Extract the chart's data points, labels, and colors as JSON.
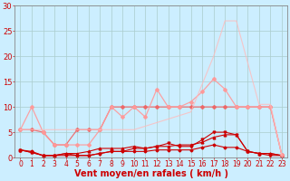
{
  "background_color": "#cceeff",
  "grid_color": "#aacccc",
  "xlabel": "Vent moyen/en rafales ( km/h )",
  "xlabel_color": "#cc0000",
  "xlabel_fontsize": 7,
  "tick_color": "#cc0000",
  "tick_fontsize": 6,
  "xlim": [
    -0.5,
    23.5
  ],
  "ylim": [
    0,
    30
  ],
  "yticks": [
    0,
    5,
    10,
    15,
    20,
    25,
    30
  ],
  "xticks": [
    0,
    1,
    2,
    3,
    4,
    5,
    6,
    7,
    8,
    9,
    10,
    11,
    12,
    13,
    14,
    15,
    16,
    17,
    18,
    19,
    20,
    21,
    22,
    23
  ],
  "series": [
    {
      "x": [
        0,
        1,
        2,
        3,
        4,
        5,
        6,
        7,
        8,
        9,
        10,
        11,
        12,
        13,
        14,
        15,
        16,
        17,
        18,
        19,
        20,
        21,
        22,
        23
      ],
      "y": [
        1.5,
        1.2,
        0.4,
        0.4,
        0.8,
        0.4,
        0.4,
        0.8,
        1.2,
        1.2,
        1.2,
        1.2,
        1.5,
        1.5,
        1.5,
        1.5,
        2.0,
        2.5,
        2.0,
        2.0,
        1.2,
        0.8,
        0.8,
        0.4
      ],
      "color": "#cc0000",
      "linewidth": 0.8,
      "marker": "D",
      "markersize": 1.5,
      "alpha": 1.0
    },
    {
      "x": [
        0,
        1,
        2,
        3,
        4,
        5,
        6,
        7,
        8,
        9,
        10,
        11,
        12,
        13,
        14,
        15,
        16,
        17,
        18,
        19,
        20,
        21,
        22,
        23
      ],
      "y": [
        1.5,
        1.0,
        0.4,
        0.4,
        0.8,
        0.8,
        1.2,
        1.8,
        1.8,
        1.8,
        2.2,
        1.8,
        2.2,
        2.2,
        2.5,
        2.5,
        3.0,
        4.0,
        4.5,
        4.5,
        1.2,
        0.8,
        0.8,
        0.4
      ],
      "color": "#cc0000",
      "linewidth": 0.8,
      "marker": "^",
      "markersize": 2.0,
      "alpha": 1.0
    },
    {
      "x": [
        0,
        1,
        2,
        3,
        4,
        5,
        6,
        7,
        8,
        9,
        10,
        11,
        12,
        13,
        14,
        15,
        16,
        17,
        18,
        19,
        20,
        21,
        22,
        23
      ],
      "y": [
        1.5,
        1.0,
        0.4,
        0.4,
        0.4,
        0.4,
        0.4,
        0.8,
        1.2,
        1.2,
        1.8,
        1.8,
        2.2,
        2.8,
        2.2,
        2.2,
        3.5,
        5.0,
        5.0,
        4.5,
        1.2,
        0.8,
        0.4,
        0.4
      ],
      "color": "#cc0000",
      "linewidth": 0.8,
      "marker": "v",
      "markersize": 2.0,
      "alpha": 1.0
    },
    {
      "x": [
        0,
        1,
        2,
        3,
        4,
        5,
        6,
        7,
        8,
        9,
        10,
        11,
        12,
        13,
        14,
        15,
        16,
        17,
        18,
        19,
        20,
        21,
        22,
        23
      ],
      "y": [
        5.5,
        5.5,
        5.0,
        2.5,
        2.5,
        5.5,
        5.5,
        5.5,
        10.0,
        10.0,
        10.0,
        10.0,
        10.0,
        10.0,
        10.0,
        10.0,
        10.0,
        10.0,
        10.0,
        10.0,
        10.0,
        10.0,
        10.0,
        0.5
      ],
      "color": "#ee6666",
      "linewidth": 0.9,
      "marker": "D",
      "markersize": 2.0,
      "alpha": 0.9
    },
    {
      "x": [
        0,
        1,
        2,
        3,
        4,
        5,
        6,
        7,
        8,
        9,
        10,
        11,
        12,
        13,
        14,
        15,
        16,
        17,
        18,
        19,
        20,
        21,
        22,
        23
      ],
      "y": [
        5.5,
        10.0,
        5.0,
        2.5,
        2.5,
        2.5,
        2.5,
        5.5,
        10.0,
        8.0,
        10.0,
        8.0,
        13.5,
        10.0,
        10.0,
        11.0,
        13.0,
        15.5,
        13.5,
        10.0,
        10.0,
        10.0,
        10.0,
        0.5
      ],
      "color": "#ff9999",
      "linewidth": 0.9,
      "marker": "D",
      "markersize": 2.0,
      "alpha": 0.9
    },
    {
      "x": [
        0,
        5,
        10,
        15,
        17,
        18,
        19,
        21,
        22,
        23
      ],
      "y": [
        5.5,
        5.5,
        5.5,
        9.0,
        20.0,
        27.0,
        27.0,
        10.5,
        10.5,
        0.5
      ],
      "color": "#ffbbbb",
      "linewidth": 0.8,
      "marker": null,
      "markersize": 0,
      "alpha": 0.8
    }
  ]
}
